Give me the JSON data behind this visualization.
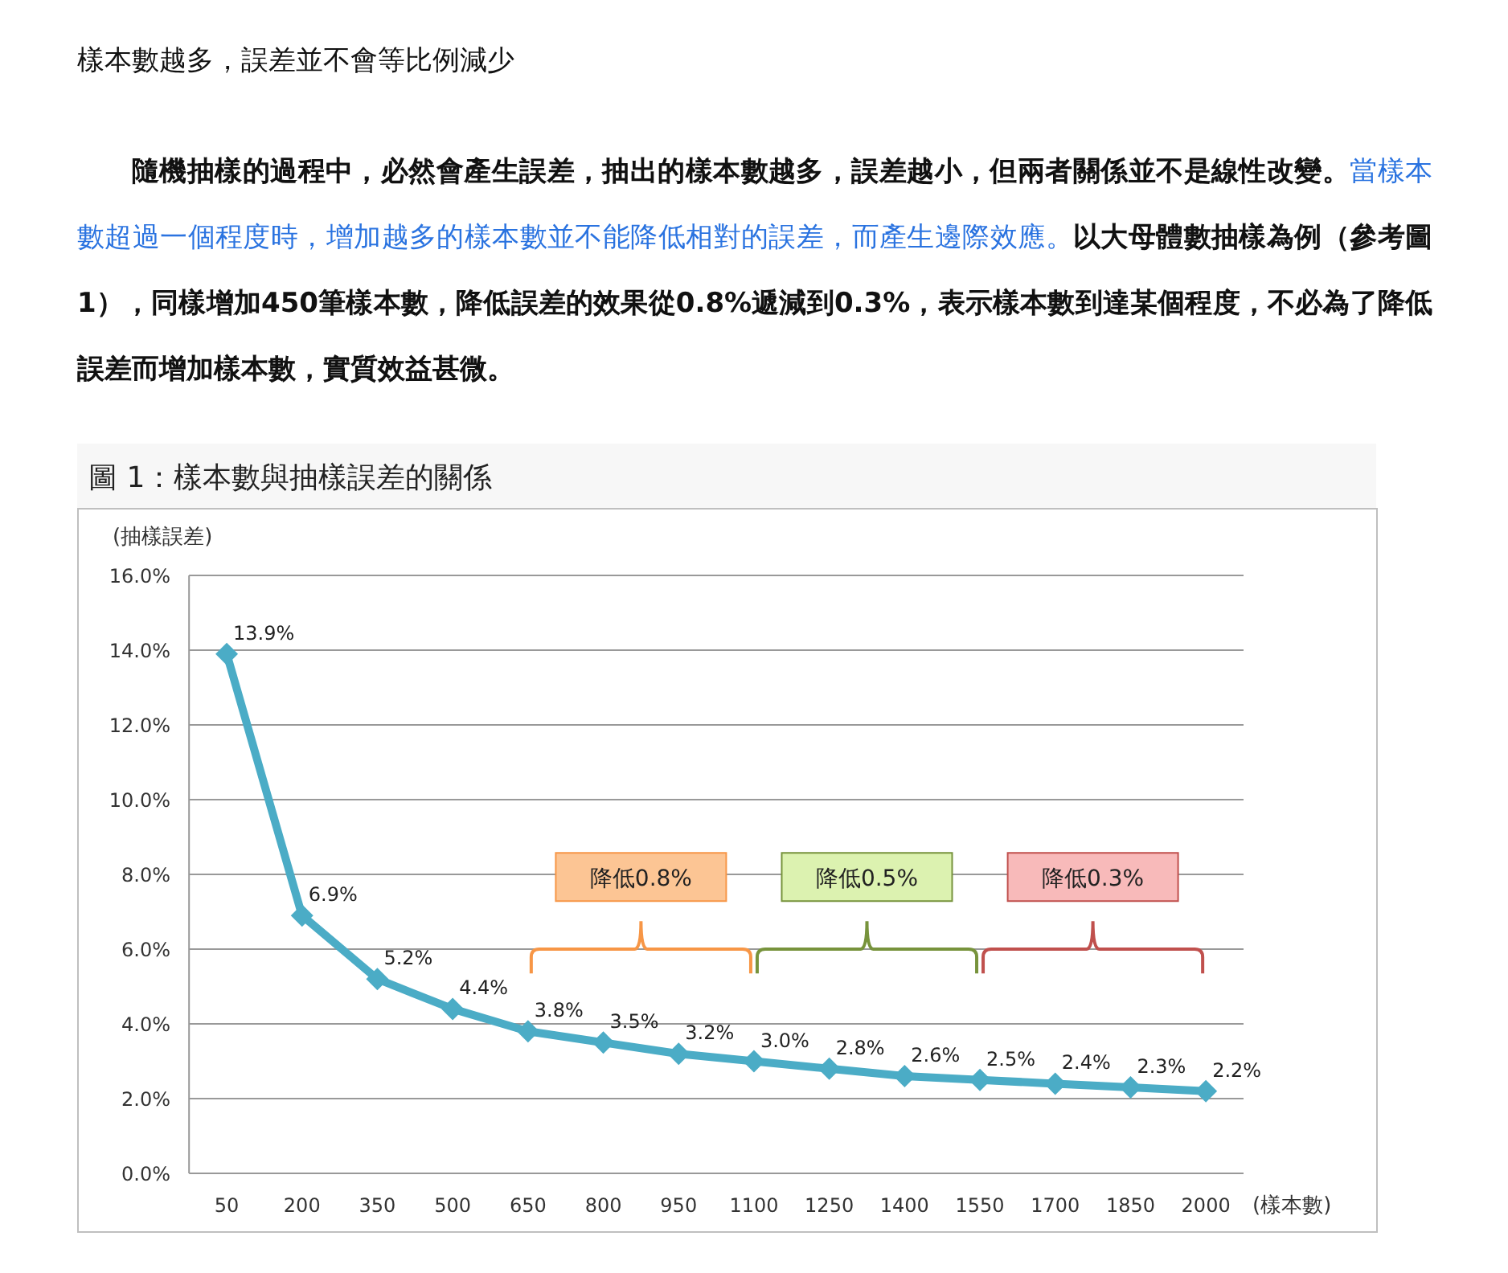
{
  "chart_data": {
    "type": "line",
    "title": "樣本數越多，誤差並不會等比例減少",
    "subtitle": "圖 1：樣本數與抽樣誤差的關係",
    "xlabel": "(樣本數)",
    "ylabel": "(抽樣誤差)",
    "categories": [
      "50",
      "200",
      "350",
      "500",
      "650",
      "800",
      "950",
      "1100",
      "1250",
      "1400",
      "1550",
      "1700",
      "1850",
      "2000"
    ],
    "values": [
      13.9,
      6.9,
      5.2,
      4.4,
      3.8,
      3.5,
      3.2,
      3.0,
      2.8,
      2.6,
      2.5,
      2.4,
      2.3,
      2.2
    ],
    "value_labels": [
      "13.9%",
      "6.9%",
      "5.2%",
      "4.4%",
      "3.8%",
      "3.5%",
      "3.2%",
      "3.0%",
      "2.8%",
      "2.6%",
      "2.5%",
      "2.4%",
      "2.3%",
      "2.2%"
    ],
    "color": "#4bacc6",
    "marker": "diamond",
    "grid": "y",
    "ylim": [
      0,
      16
    ],
    "yticks": [
      {
        "value": 0,
        "label": "0.0%"
      },
      {
        "value": 2,
        "label": "2.0%"
      },
      {
        "value": 4,
        "label": "4.0%"
      },
      {
        "value": 6,
        "label": "6.0%"
      },
      {
        "value": 8,
        "label": "8.0%"
      },
      {
        "value": 10,
        "label": "10.0%"
      },
      {
        "value": 12,
        "label": "12.0%"
      },
      {
        "value": 14,
        "label": "14.0%"
      },
      {
        "value": 16,
        "label": "16.0%"
      }
    ],
    "annotations": [
      "隨機抽樣的過程中，必然會產生誤差，抽出的樣本數越多，誤差越小，但兩者關係並不是線性改變。",
      "當樣本數超過一個程度時，增加越多的樣本數並不能降低相對的誤差，而產生邊際效應。",
      "以大母體數抽樣為例（參考圖1），同樣增加450筆樣本數，降低誤差的效果從0.8%遞減到0.3%，表示樣本數到達某個程度，不必為了降低誤差而增加樣本數，實質效益甚微。",
      "降低0.8%",
      "降低0.5%",
      "降低0.3%"
    ]
  }
}
